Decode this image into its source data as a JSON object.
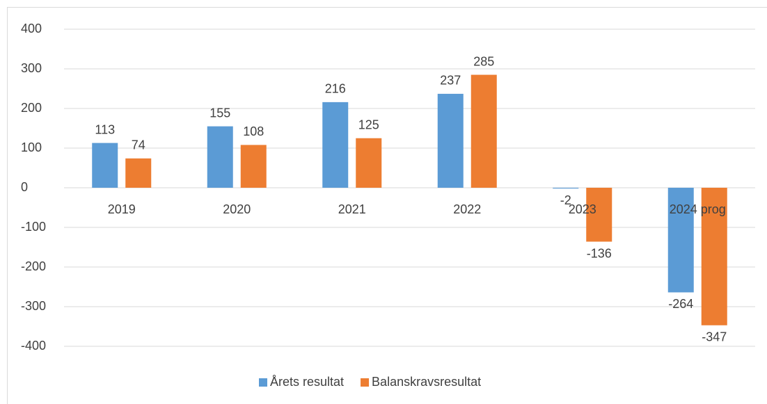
{
  "chart_data": {
    "type": "bar",
    "categories": [
      "2019",
      "2020",
      "2021",
      "2022",
      "2023",
      "2024 prog"
    ],
    "series": [
      {
        "name": "Årets resultat",
        "color": "#5b9bd5",
        "values": [
          113,
          155,
          216,
          237,
          -2,
          -264
        ]
      },
      {
        "name": "Balanskravsresultat",
        "color": "#ed7d31",
        "values": [
          74,
          108,
          125,
          285,
          -136,
          -347
        ]
      }
    ],
    "ylim": [
      -400,
      400
    ],
    "yticks": [
      -400,
      -300,
      -200,
      -100,
      0,
      100,
      200,
      300,
      400
    ],
    "grid": true,
    "legend": "bottom"
  }
}
